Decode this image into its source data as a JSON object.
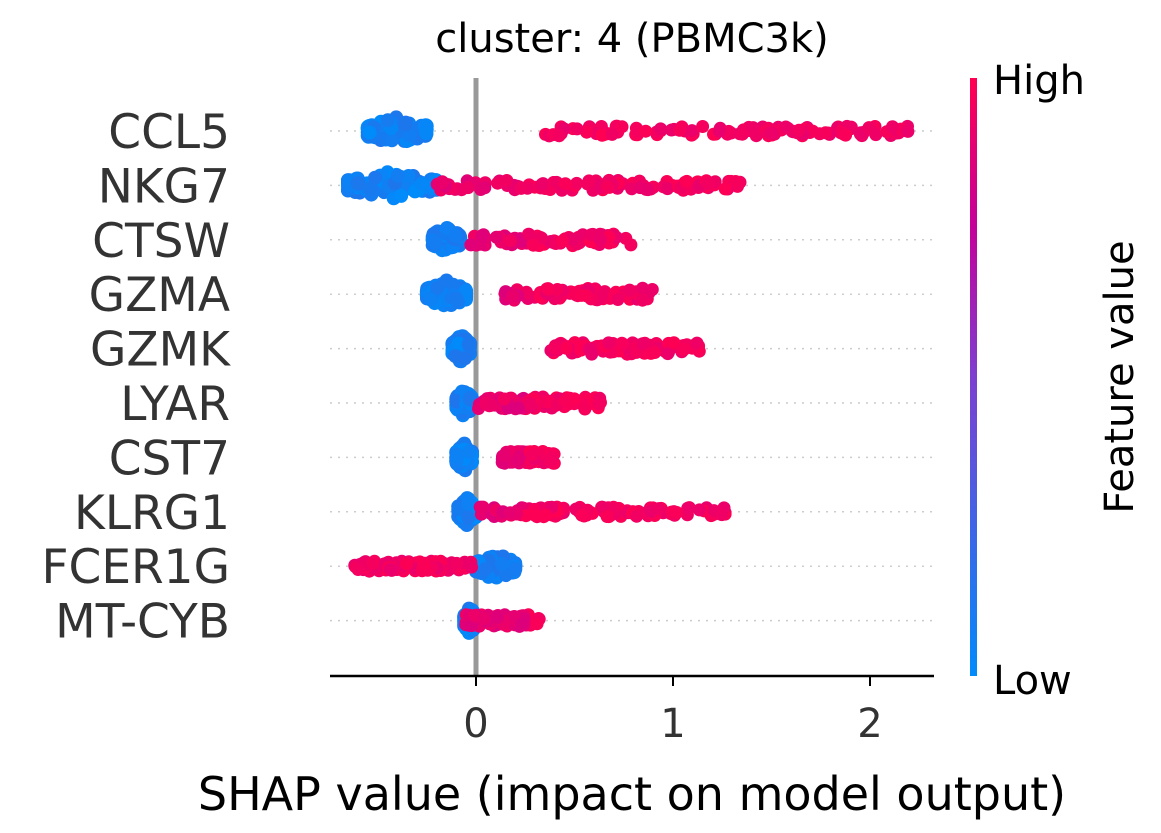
{
  "chart_data": {
    "type": "scatter",
    "subtype": "shap-beeswarm",
    "title": "cluster: 4 (PBMC3k)",
    "xlabel": "SHAP value (impact on model output)",
    "xlim": [
      -0.75,
      2.32
    ],
    "xticks": [
      "0",
      "1",
      "2"
    ],
    "xtick_values": [
      0,
      1,
      2
    ],
    "colorbar": {
      "title": "Feature value",
      "high_label": "High",
      "low_label": "Low",
      "low_color": "#008bfb",
      "high_color": "#ff0052"
    },
    "grid": "dotted row guides",
    "features": [
      {
        "name": "CCL5",
        "low_range": [
          -0.55,
          -0.25
        ],
        "high_range": [
          0.35,
          2.2
        ],
        "high_density": "spread"
      },
      {
        "name": "NKG7",
        "low_range": [
          -0.65,
          -0.2
        ],
        "high_range": [
          -0.2,
          1.35
        ],
        "high_density": "spread"
      },
      {
        "name": "CTSW",
        "low_range": [
          -0.22,
          -0.08
        ],
        "high_range": [
          -0.03,
          0.8
        ],
        "high_density": "dense-left"
      },
      {
        "name": "GZMA",
        "low_range": [
          -0.25,
          -0.05
        ],
        "high_range": [
          0.12,
          0.9
        ],
        "high_density": "dense"
      },
      {
        "name": "GZMK",
        "low_range": [
          -0.12,
          -0.03
        ],
        "high_range": [
          0.38,
          1.15
        ],
        "high_density": "dense"
      },
      {
        "name": "LYAR",
        "low_range": [
          -0.1,
          -0.02
        ],
        "high_range": [
          0.0,
          0.67
        ],
        "high_density": "dense"
      },
      {
        "name": "CST7",
        "low_range": [
          -0.1,
          -0.02
        ],
        "high_range": [
          0.12,
          0.4
        ],
        "high_density": "dense"
      },
      {
        "name": "KLRG1",
        "low_range": [
          -0.09,
          0.0
        ],
        "high_range": [
          0.02,
          1.27
        ],
        "high_density": "spread"
      },
      {
        "name": "FCER1G",
        "low_range": [
          0.0,
          0.2
        ],
        "high_range": [
          -0.62,
          -0.02
        ],
        "high_density": "spread"
      },
      {
        "name": "MT-CYB",
        "low_range": [
          -0.06,
          0.0
        ],
        "high_range": [
          -0.06,
          0.33
        ],
        "high_density": "dense"
      }
    ]
  }
}
